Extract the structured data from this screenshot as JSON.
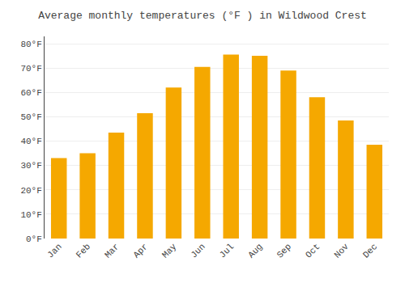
{
  "chart_data": {
    "type": "bar",
    "title": "Average monthly temperatures (°F ) in Wildwood Crest",
    "categories": [
      "Jan",
      "Feb",
      "Mar",
      "Apr",
      "May",
      "Jun",
      "Jul",
      "Aug",
      "Sep",
      "Oct",
      "Nov",
      "Dec"
    ],
    "values": [
      33,
      35,
      43.5,
      51.5,
      62,
      70.5,
      75.5,
      75,
      69,
      58,
      48.5,
      38.5
    ],
    "color": "#F5A800",
    "ylim": [
      0,
      83
    ],
    "yticks": [
      {
        "value": 0,
        "label": "0°F"
      },
      {
        "value": 10,
        "label": "10°F"
      },
      {
        "value": 20,
        "label": "20°F"
      },
      {
        "value": 30,
        "label": "30°F"
      },
      {
        "value": 40,
        "label": "40°F"
      },
      {
        "value": 50,
        "label": "50°F"
      },
      {
        "value": 60,
        "label": "60°F"
      },
      {
        "value": 70,
        "label": "70°F"
      },
      {
        "value": 80,
        "label": "80°F"
      }
    ],
    "grid": true
  }
}
